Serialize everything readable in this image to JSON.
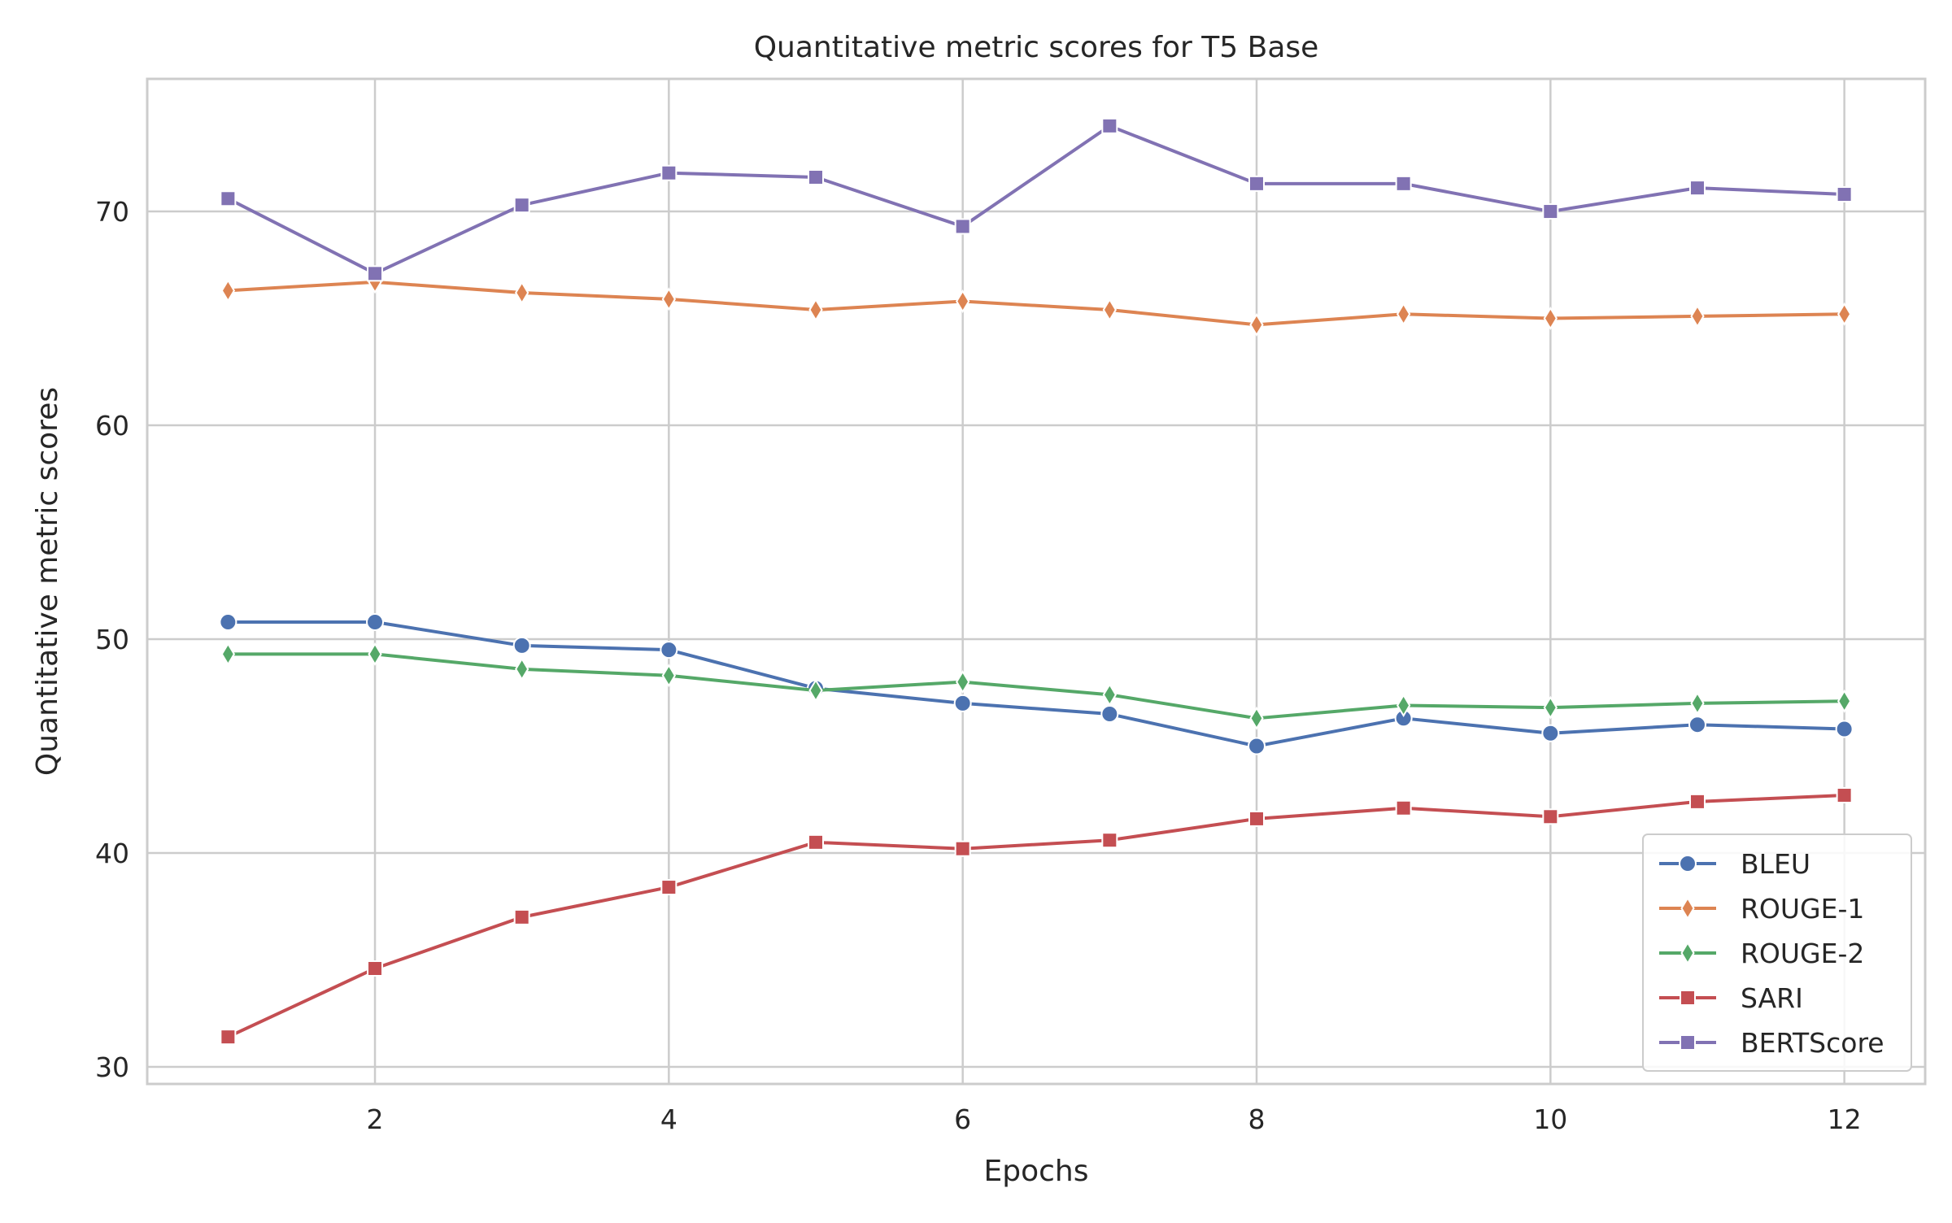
{
  "chart_data": {
    "type": "line",
    "title": "Quantitative metric scores for T5 Base",
    "xlabel": "Epochs",
    "ylabel": "Quantitative metric scores",
    "x": [
      1,
      2,
      3,
      4,
      5,
      6,
      7,
      8,
      9,
      10,
      11,
      12
    ],
    "xlim": [
      0.45,
      12.55
    ],
    "ylim": [
      29.2,
      76.2
    ],
    "xticks": [
      2,
      4,
      6,
      8,
      10,
      12
    ],
    "yticks": [
      30,
      40,
      50,
      60,
      70
    ],
    "grid": true,
    "legend_position": "lower right",
    "series": [
      {
        "name": "BLEU",
        "color": "#4c72b0",
        "marker": "circle",
        "values": [
          50.8,
          50.8,
          49.7,
          49.5,
          47.7,
          47.0,
          46.5,
          45.0,
          46.3,
          45.6,
          46.0,
          45.8
        ]
      },
      {
        "name": "ROUGE-1",
        "color": "#dd8452",
        "marker": "diamond",
        "values": [
          66.3,
          66.7,
          66.2,
          65.9,
          65.4,
          65.8,
          65.4,
          64.7,
          65.2,
          65.0,
          65.1,
          65.2
        ]
      },
      {
        "name": "ROUGE-2",
        "color": "#55a868",
        "marker": "diamond",
        "values": [
          49.3,
          49.3,
          48.6,
          48.3,
          47.6,
          48.0,
          47.4,
          46.3,
          46.9,
          46.8,
          47.0,
          47.1
        ]
      },
      {
        "name": "SARI",
        "color": "#c44e52",
        "marker": "square",
        "values": [
          31.4,
          34.6,
          37.0,
          38.4,
          40.5,
          40.2,
          40.6,
          41.6,
          42.1,
          41.7,
          42.4,
          42.7
        ]
      },
      {
        "name": "BERTScore",
        "color": "#8172b3",
        "marker": "square",
        "values": [
          70.6,
          67.1,
          70.3,
          71.8,
          71.6,
          69.3,
          74.0,
          71.3,
          71.3,
          70.0,
          71.1,
          70.8
        ]
      }
    ]
  }
}
